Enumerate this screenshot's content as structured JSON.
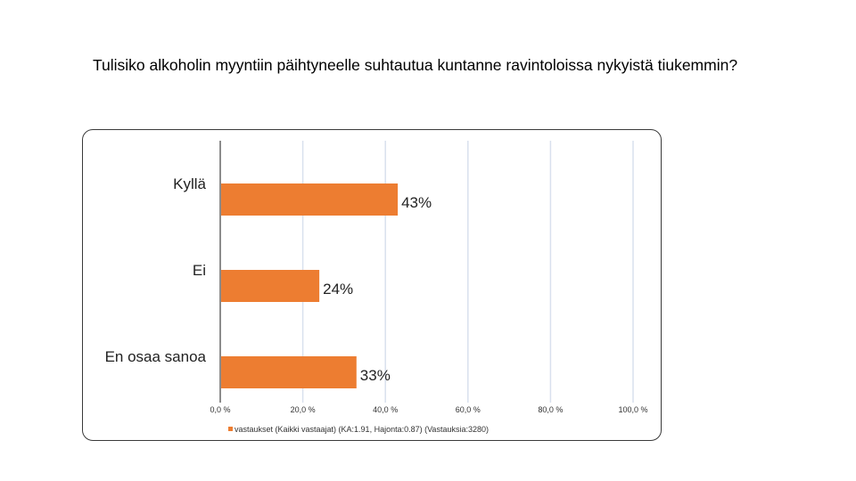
{
  "title": "Tulisiko alkoholin myyntiin päihtyneelle suhtautua kuntanne ravintoloissa nykyistä tiukemmin?",
  "colors": {
    "bar": "#ED7D31",
    "grid": "#D9E1EE",
    "axis": "#8C8C8C"
  },
  "chart_data": {
    "type": "bar",
    "orientation": "horizontal",
    "title": "Tulisiko alkoholin myyntiin päihtyneelle suhtautua kuntanne ravintoloissa nykyistä tiukemmin?",
    "categories": [
      "Kyllä",
      "Ei",
      "En osaa sanoa"
    ],
    "series": [
      {
        "name": "vastaukset (Kaikki vastaajat) (KA:1.91, Hajonta:0.87) (Vastauksia:3280)",
        "values": [
          43,
          24,
          33
        ],
        "data_labels": [
          "43%",
          "24%",
          "33%"
        ]
      }
    ],
    "xlim": [
      0,
      100
    ],
    "xticks": [
      0,
      20,
      40,
      60,
      80,
      100
    ],
    "xtick_labels": [
      "0,0 %",
      "20,0 %",
      "40,0 %",
      "60,0 %",
      "80,0 %",
      "100,0 %"
    ],
    "grid": true,
    "legend_position": "bottom"
  }
}
